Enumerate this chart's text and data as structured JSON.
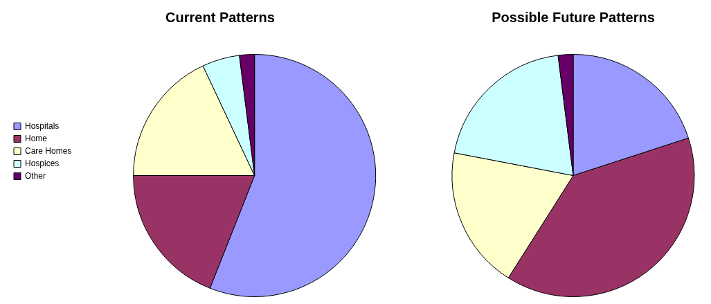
{
  "chart_data": [
    {
      "type": "pie",
      "title": "Current Patterns",
      "categories": [
        "Hospitals",
        "Home",
        "Care Homes",
        "Hospices",
        "Other"
      ],
      "values": [
        56,
        19,
        18,
        5,
        2
      ],
      "colors": [
        "#9999ff",
        "#993366",
        "#ffffcc",
        "#ccffff",
        "#660066"
      ],
      "legend": "left"
    },
    {
      "type": "pie",
      "title": "Possible Future Patterns",
      "categories": [
        null,
        null,
        null,
        null,
        null
      ],
      "values": [
        20,
        39,
        19,
        20,
        2
      ],
      "colors": [
        "#9999ff",
        "#993366",
        "#ffffcc",
        "#ccffff",
        "#660066"
      ],
      "legend": false
    }
  ]
}
